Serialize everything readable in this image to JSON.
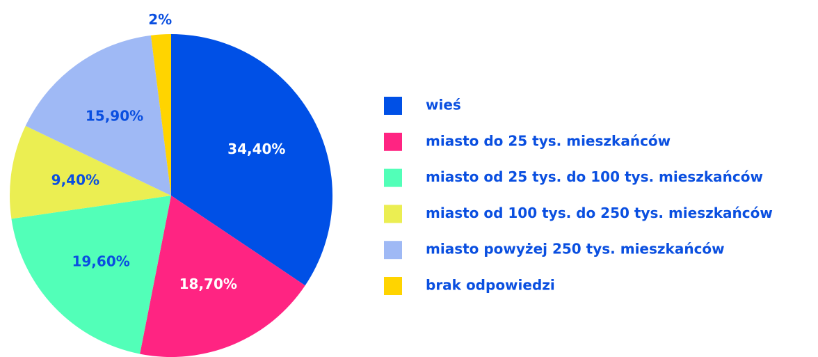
{
  "chart_data": {
    "type": "pie",
    "categories": [
      "wieś",
      "miasto do 25 tys. mieszkańców",
      "miasto od 25 tys. do 100 tys. mieszkańców",
      "miasto od 100 tys. do 250 tys. mieszkańców",
      "miasto powyżej 250 tys. mieszkańców",
      "brak odpowiedzi"
    ],
    "values": [
      34.4,
      18.7,
      19.6,
      9.4,
      15.9,
      2
    ],
    "value_labels": [
      "34,40%",
      "18,70%",
      "19,60%",
      "9,40%",
      "15,90%",
      "2%"
    ],
    "colors": [
      "#0050e6",
      "#ff2482",
      "#52ffb8",
      "#ebee52",
      "#9fb9f5",
      "#ffd400"
    ],
    "legend": "right"
  }
}
